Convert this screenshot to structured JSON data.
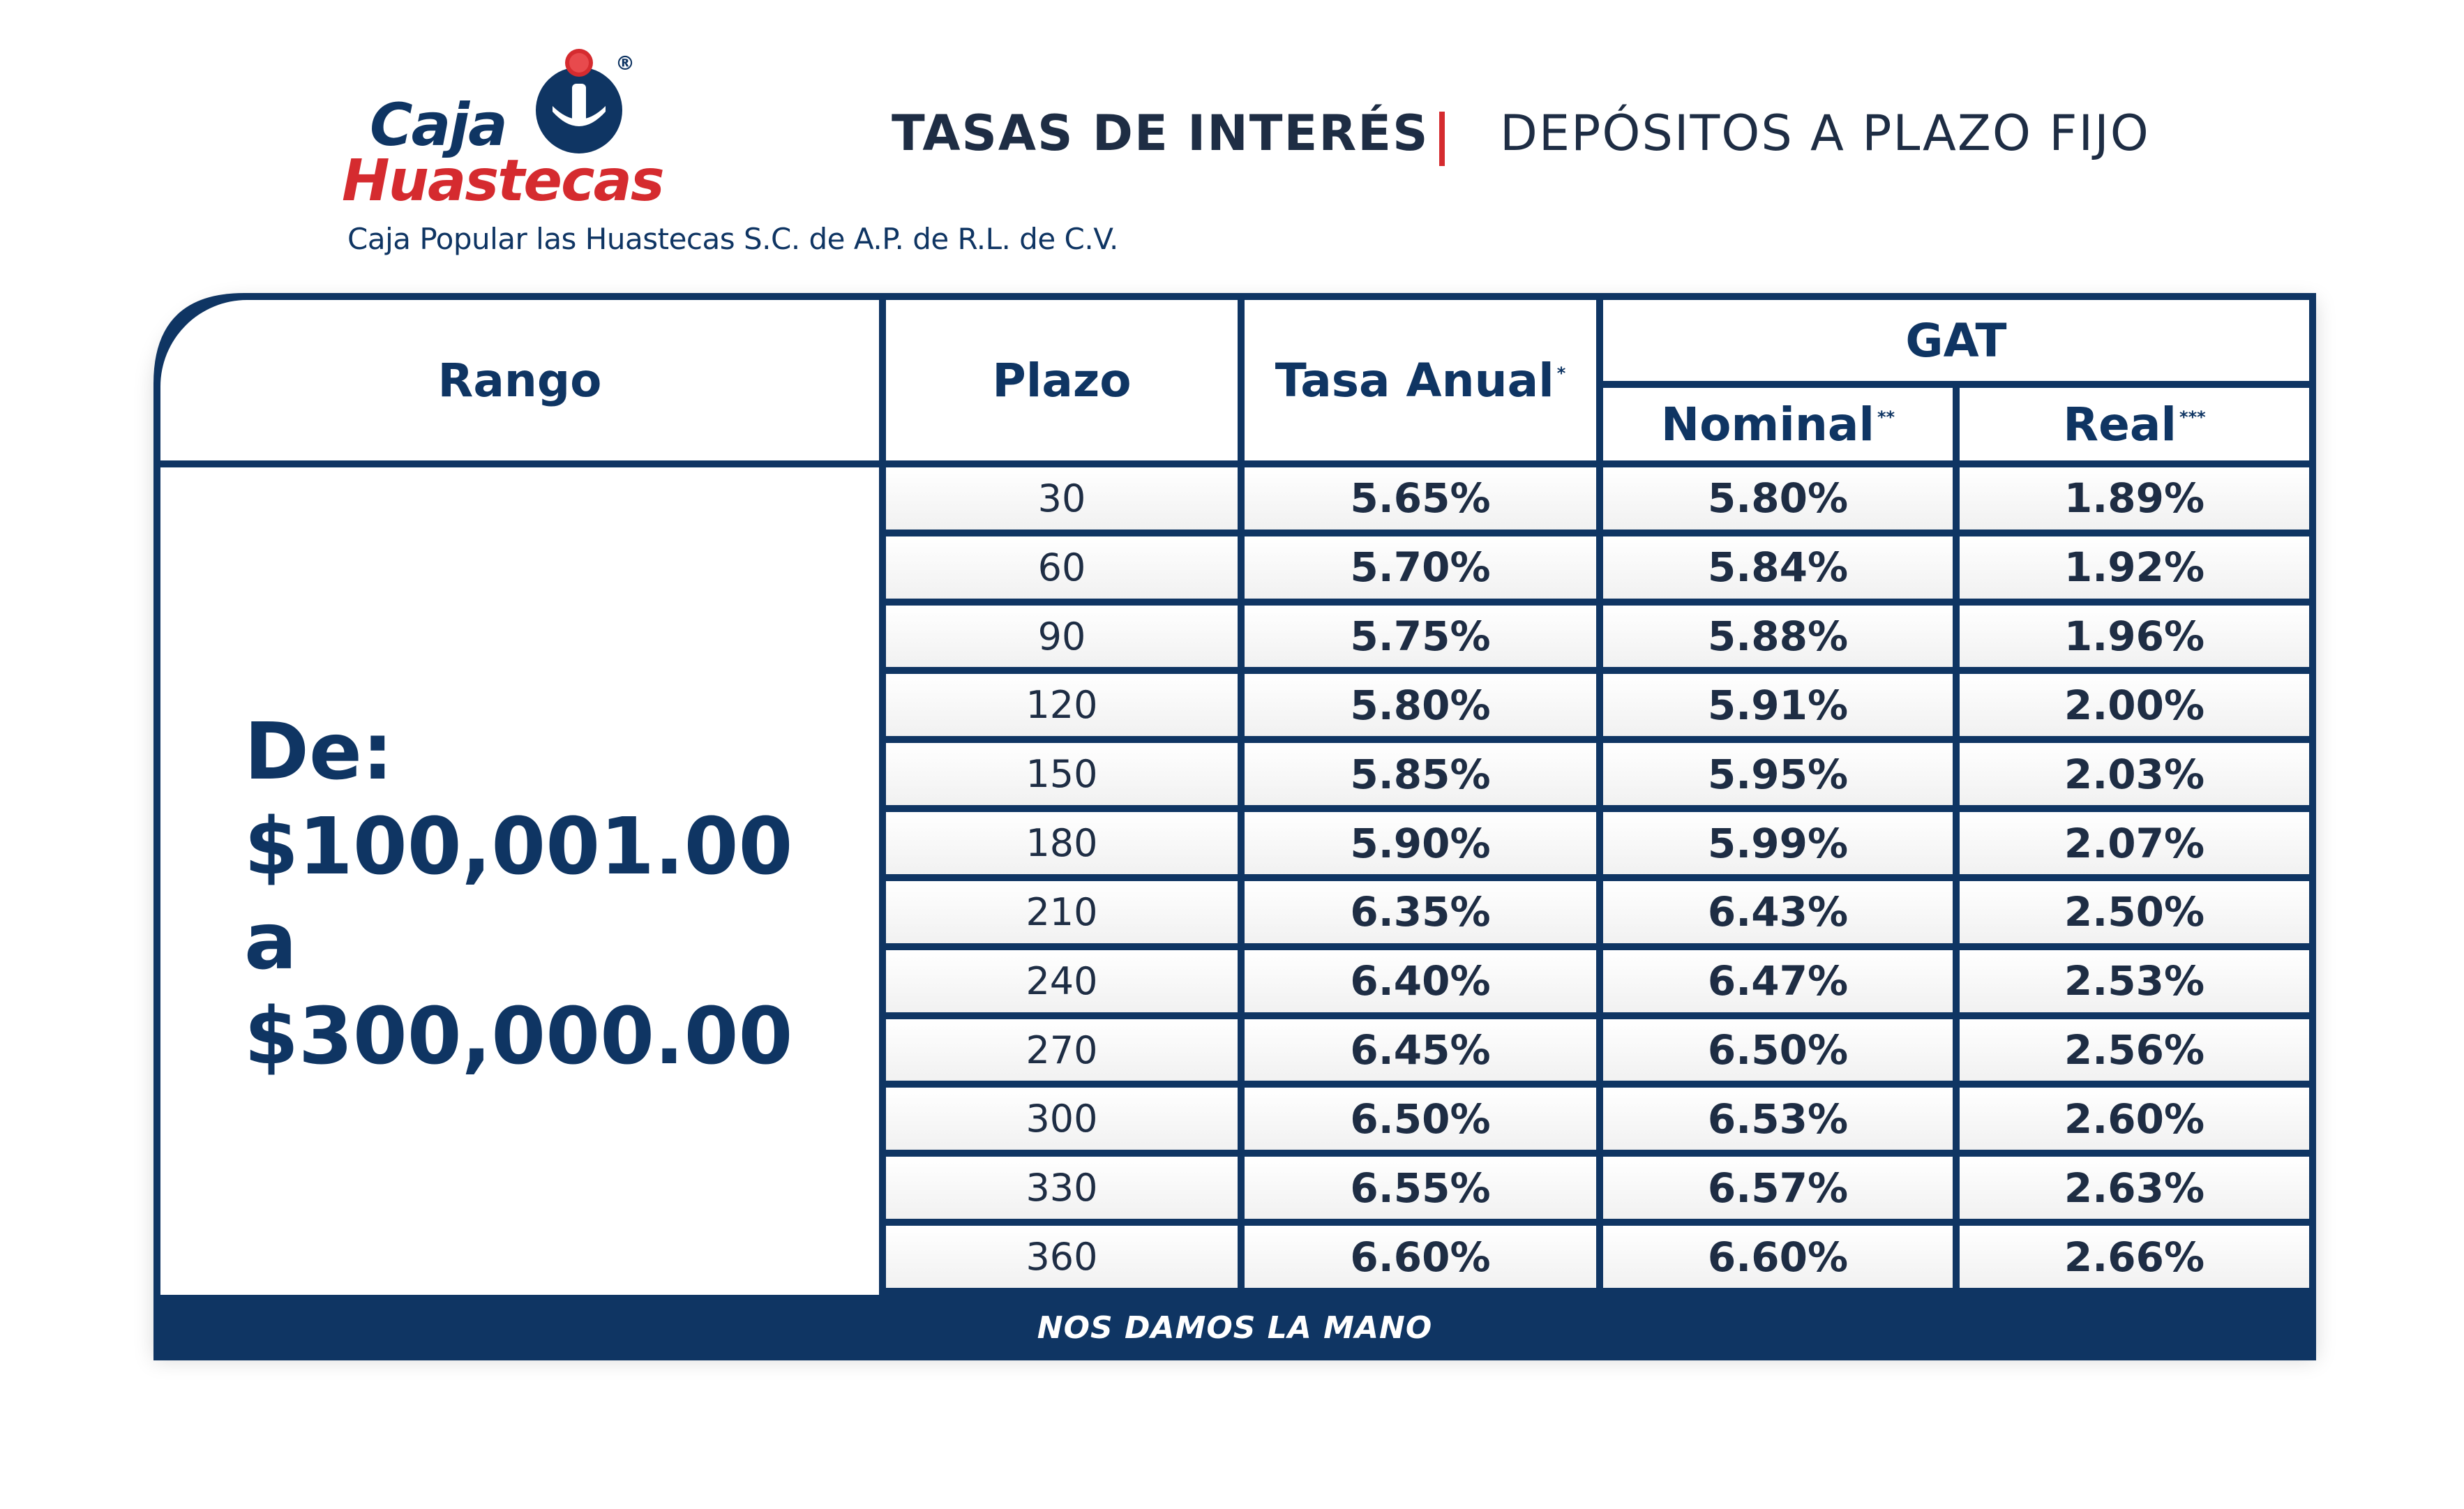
{
  "brand": {
    "name_line1": "Caja",
    "name_line2": "Huastecas",
    "registered_mark": "®",
    "legal_name": "Caja Popular las Huastecas S.C. de A.P.  de R.L. de C.V.",
    "colors": {
      "navy": "#0f3563",
      "red": "#d52b2f"
    }
  },
  "header": {
    "title_left": "TASAS DE INTERÉS",
    "separator": "|",
    "title_right": "DEPÓSITOS A PLAZO FIJO"
  },
  "table": {
    "headers": {
      "rango": "Rango",
      "plazo": "Plazo",
      "tasa_anual": "Tasa Anual",
      "tasa_anual_mark": "*",
      "gat": "GAT",
      "nominal": "Nominal",
      "nominal_mark": "**",
      "real": "Real",
      "real_mark": "***"
    },
    "range": {
      "line1": "De:",
      "line2": "$100,001.00",
      "line3": "a",
      "line4": "$300,000.00"
    },
    "rows": [
      {
        "plazo": "30",
        "tasa_anual": "5.65%",
        "nominal": "5.80%",
        "real": "1.89%"
      },
      {
        "plazo": "60",
        "tasa_anual": "5.70%",
        "nominal": "5.84%",
        "real": "1.92%"
      },
      {
        "plazo": "90",
        "tasa_anual": "5.75%",
        "nominal": "5.88%",
        "real": "1.96%"
      },
      {
        "plazo": "120",
        "tasa_anual": "5.80%",
        "nominal": "5.91%",
        "real": "2.00%"
      },
      {
        "plazo": "150",
        "tasa_anual": "5.85%",
        "nominal": "5.95%",
        "real": "2.03%"
      },
      {
        "plazo": "180",
        "tasa_anual": "5.90%",
        "nominal": "5.99%",
        "real": "2.07%"
      },
      {
        "plazo": "210",
        "tasa_anual": "6.35%",
        "nominal": "6.43%",
        "real": "2.50%"
      },
      {
        "plazo": "240",
        "tasa_anual": "6.40%",
        "nominal": "6.47%",
        "real": "2.53%"
      },
      {
        "plazo": "270",
        "tasa_anual": "6.45%",
        "nominal": "6.50%",
        "real": "2.56%"
      },
      {
        "plazo": "300",
        "tasa_anual": "6.50%",
        "nominal": "6.53%",
        "real": "2.60%"
      },
      {
        "plazo": "330",
        "tasa_anual": "6.55%",
        "nominal": "6.57%",
        "real": "2.63%"
      },
      {
        "plazo": "360",
        "tasa_anual": "6.60%",
        "nominal": "6.60%",
        "real": "2.66%"
      }
    ]
  },
  "footer": {
    "slogan": "NOS DAMOS LA MANO"
  }
}
